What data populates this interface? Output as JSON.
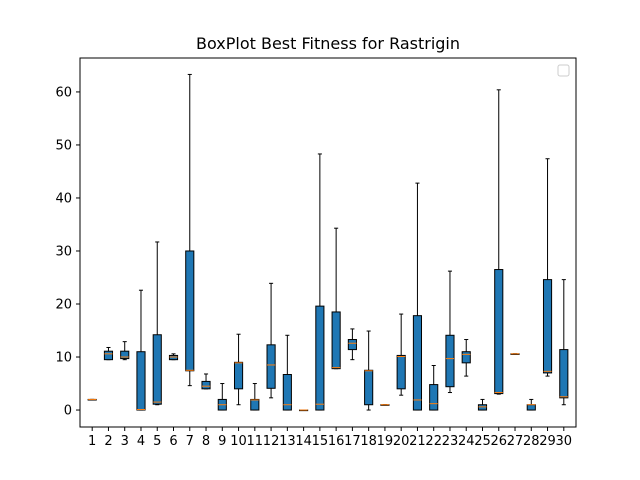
{
  "chart_data": {
    "type": "boxplot",
    "title": "BoxPlot Best Fitness for Rastrigin",
    "xlabel": "",
    "ylabel": "",
    "ylim": [
      -3.2,
      66.4
    ],
    "yticks": [
      0,
      10,
      20,
      30,
      40,
      50,
      60
    ],
    "grid": false,
    "legend": {
      "placement": "top-right",
      "entries": []
    },
    "colors": {
      "box": "#1f77b4",
      "median": "#ff7f0e",
      "line": "#000000"
    },
    "categories": [
      "1",
      "2",
      "3",
      "4",
      "5",
      "6",
      "7",
      "8",
      "9",
      "10",
      "11",
      "12",
      "13",
      "14",
      "15",
      "16",
      "17",
      "18",
      "19",
      "20",
      "21",
      "22",
      "23",
      "24",
      "25",
      "26",
      "27",
      "28",
      "29",
      "30"
    ],
    "boxes": [
      {
        "label": "1",
        "whislo": 2.0,
        "q1": 2.0,
        "med": 2.0,
        "q3": 2.0,
        "whishi": 2.0
      },
      {
        "label": "2",
        "whislo": 9.5,
        "q1": 9.5,
        "med": 10.6,
        "q3": 11.1,
        "whishi": 11.8
      },
      {
        "label": "3",
        "whislo": 9.5,
        "q1": 9.7,
        "med": 10.0,
        "q3": 11.1,
        "whishi": 12.9
      },
      {
        "label": "4",
        "whislo": 0.0,
        "q1": 0.0,
        "med": 0.1,
        "q3": 11.0,
        "whishi": 22.6
      },
      {
        "label": "5",
        "whislo": 1.0,
        "q1": 1.1,
        "med": 1.5,
        "q3": 14.2,
        "whishi": 31.7
      },
      {
        "label": "6",
        "whislo": 9.5,
        "q1": 9.5,
        "med": 10.0,
        "q3": 10.3,
        "whishi": 10.6
      },
      {
        "label": "7",
        "whislo": 4.6,
        "q1": 7.4,
        "med": 7.5,
        "q3": 30.0,
        "whishi": 63.3
      },
      {
        "label": "8",
        "whislo": 4.0,
        "q1": 4.0,
        "med": 4.5,
        "q3": 5.4,
        "whishi": 6.8
      },
      {
        "label": "9",
        "whislo": 0.0,
        "q1": 0.0,
        "med": 1.0,
        "q3": 2.0,
        "whishi": 5.0
      },
      {
        "label": "10",
        "whislo": 1.0,
        "q1": 4.0,
        "med": 8.9,
        "q3": 9.0,
        "whishi": 14.3
      },
      {
        "label": "11",
        "whislo": 0.0,
        "q1": 0.0,
        "med": 1.9,
        "q3": 2.0,
        "whishi": 5.0
      },
      {
        "label": "12",
        "whislo": 2.3,
        "q1": 4.1,
        "med": 8.5,
        "q3": 12.3,
        "whishi": 23.9
      },
      {
        "label": "13",
        "whislo": 0.0,
        "q1": 0.0,
        "med": 1.0,
        "q3": 6.7,
        "whishi": 14.1
      },
      {
        "label": "14",
        "whislo": 0.0,
        "q1": 0.0,
        "med": 0.0,
        "q3": 0.0,
        "whishi": 0.0
      },
      {
        "label": "15",
        "whislo": 0.0,
        "q1": 0.0,
        "med": 1.1,
        "q3": 19.6,
        "whishi": 48.3
      },
      {
        "label": "16",
        "whislo": 7.8,
        "q1": 7.8,
        "med": 8.0,
        "q3": 18.5,
        "whishi": 34.3
      },
      {
        "label": "17",
        "whislo": 9.5,
        "q1": 11.4,
        "med": 12.6,
        "q3": 13.3,
        "whishi": 15.3
      },
      {
        "label": "18",
        "whislo": 0.0,
        "q1": 1.0,
        "med": 7.4,
        "q3": 7.5,
        "whishi": 14.9
      },
      {
        "label": "19",
        "whislo": 1.0,
        "q1": 1.0,
        "med": 1.0,
        "q3": 1.0,
        "whishi": 1.0
      },
      {
        "label": "20",
        "whislo": 2.8,
        "q1": 4.0,
        "med": 10.1,
        "q3": 10.3,
        "whishi": 18.1
      },
      {
        "label": "21",
        "whislo": 0.0,
        "q1": 0.0,
        "med": 1.9,
        "q3": 17.8,
        "whishi": 42.8
      },
      {
        "label": "22",
        "whislo": 0.0,
        "q1": 0.0,
        "med": 1.2,
        "q3": 4.8,
        "whishi": 8.4
      },
      {
        "label": "23",
        "whislo": 3.3,
        "q1": 4.4,
        "med": 9.7,
        "q3": 14.1,
        "whishi": 26.2
      },
      {
        "label": "24",
        "whislo": 6.4,
        "q1": 8.9,
        "med": 10.5,
        "q3": 11.0,
        "whishi": 13.3
      },
      {
        "label": "25",
        "whislo": 0.0,
        "q1": 0.0,
        "med": 0.6,
        "q3": 1.0,
        "whishi": 2.0
      },
      {
        "label": "26",
        "whislo": 3.0,
        "q1": 3.1,
        "med": 3.3,
        "q3": 26.5,
        "whishi": 60.4
      },
      {
        "label": "27",
        "whislo": 10.6,
        "q1": 10.6,
        "med": 10.6,
        "q3": 10.6,
        "whishi": 10.6
      },
      {
        "label": "28",
        "whislo": 0.0,
        "q1": 0.0,
        "med": 1.0,
        "q3": 1.0,
        "whishi": 2.0
      },
      {
        "label": "29",
        "whislo": 6.4,
        "q1": 7.0,
        "med": 7.3,
        "q3": 24.6,
        "whishi": 47.4
      },
      {
        "label": "30",
        "whislo": 1.0,
        "q1": 2.3,
        "med": 2.5,
        "q3": 11.4,
        "whishi": 24.6
      }
    ]
  }
}
